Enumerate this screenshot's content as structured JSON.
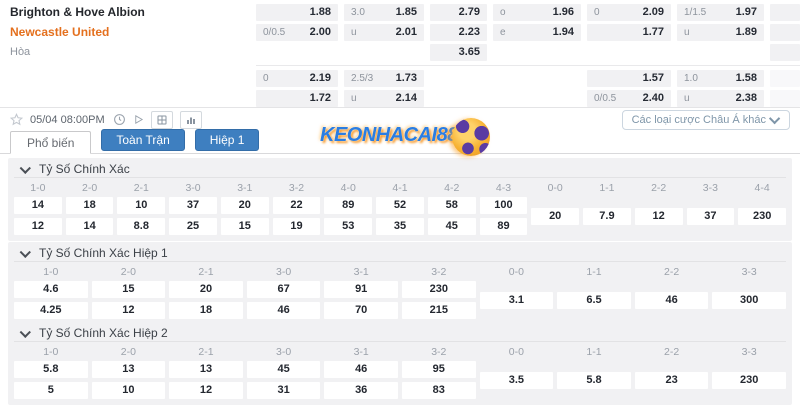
{
  "match": {
    "home": "Brighton & Hove Albion",
    "away": "Newcastle United",
    "draw_label": "Hòa"
  },
  "odds": {
    "rows": [
      {
        "stub": "gray",
        "cells": [
          {
            "l": "",
            "v": "1.88"
          },
          {
            "l": "3.0",
            "v": "1.85"
          },
          {
            "l": "",
            "v": "2.79"
          },
          {
            "l": "o",
            "v": "1.96"
          },
          {
            "l": "0",
            "v": "2.09"
          },
          {
            "l": "1/1.5",
            "v": "1.97"
          }
        ]
      },
      {
        "stub": "gray",
        "cells": [
          {
            "l": "0/0.5",
            "v": "2.00"
          },
          {
            "l": "u",
            "v": "2.01"
          },
          {
            "l": "",
            "v": "2.23"
          },
          {
            "l": "e",
            "v": "1.94"
          },
          {
            "l": "",
            "v": "1.77"
          },
          {
            "l": "u",
            "v": "1.89"
          }
        ]
      },
      {
        "stub": "gray",
        "cells": [
          null,
          null,
          {
            "l": "",
            "v": "3.65"
          },
          null,
          null,
          null
        ]
      },
      {
        "divider": true
      },
      {
        "stub": "faint",
        "cells": [
          {
            "l": "0",
            "v": "2.19"
          },
          {
            "l": "2.5/3",
            "v": "1.73"
          },
          null,
          null,
          {
            "l": "",
            "v": "1.57"
          },
          {
            "l": "1.0",
            "v": "1.58"
          }
        ]
      },
      {
        "stub": "faint",
        "cells": [
          {
            "l": "",
            "v": "1.72"
          },
          {
            "l": "u",
            "v": "2.14"
          },
          null,
          null,
          {
            "l": "0/0.5",
            "v": "2.40"
          },
          {
            "l": "u",
            "v": "2.38"
          }
        ]
      }
    ]
  },
  "toolbar": {
    "datetime": "05/04 08:00PM",
    "dropdown_label": "Các loại cược Châu Á khác",
    "icons": [
      "favorite-star",
      "clock",
      "play",
      "live-board",
      "stats-chart"
    ]
  },
  "tabs": [
    {
      "label": "Phổ biến",
      "active": true
    },
    {
      "label": "Toàn Trận",
      "active": false
    },
    {
      "label": "Hiệp 1",
      "active": false
    }
  ],
  "watermark": {
    "text": "KEONHACAI88"
  },
  "sections": [
    {
      "title": "Tỷ Số Chính Xác",
      "columns": [
        {
          "h": "1-0",
          "v": [
            "14",
            "12"
          ]
        },
        {
          "h": "2-0",
          "v": [
            "18",
            "14"
          ]
        },
        {
          "h": "2-1",
          "v": [
            "10",
            "8.8"
          ]
        },
        {
          "h": "3-0",
          "v": [
            "37",
            "25"
          ]
        },
        {
          "h": "3-1",
          "v": [
            "20",
            "15"
          ]
        },
        {
          "h": "3-2",
          "v": [
            "22",
            "19"
          ]
        },
        {
          "h": "4-0",
          "v": [
            "89",
            "53"
          ]
        },
        {
          "h": "4-1",
          "v": [
            "52",
            "35"
          ]
        },
        {
          "h": "4-2",
          "v": [
            "58",
            "45"
          ]
        },
        {
          "h": "4-3",
          "v": [
            "100",
            "89"
          ]
        },
        {
          "h": "0-0",
          "v": [
            "20"
          ]
        },
        {
          "h": "1-1",
          "v": [
            "7.9"
          ]
        },
        {
          "h": "2-2",
          "v": [
            "12"
          ]
        },
        {
          "h": "3-3",
          "v": [
            "37"
          ]
        },
        {
          "h": "4-4",
          "v": [
            "230"
          ]
        }
      ]
    },
    {
      "title": "Tỷ Số Chính Xác Hiệp 1",
      "columns": [
        {
          "h": "1-0",
          "v": [
            "4.6",
            "4.25"
          ]
        },
        {
          "h": "2-0",
          "v": [
            "15",
            "12"
          ]
        },
        {
          "h": "2-1",
          "v": [
            "20",
            "18"
          ]
        },
        {
          "h": "3-0",
          "v": [
            "67",
            "46"
          ]
        },
        {
          "h": "3-1",
          "v": [
            "91",
            "70"
          ]
        },
        {
          "h": "3-2",
          "v": [
            "230",
            "215"
          ]
        },
        {
          "h": "0-0",
          "v": [
            "3.1"
          ]
        },
        {
          "h": "1-1",
          "v": [
            "6.5"
          ]
        },
        {
          "h": "2-2",
          "v": [
            "46"
          ]
        },
        {
          "h": "3-3",
          "v": [
            "300"
          ]
        }
      ]
    },
    {
      "title": "Tỷ Số Chính Xác Hiệp 2",
      "columns": [
        {
          "h": "1-0",
          "v": [
            "5.8",
            "5"
          ]
        },
        {
          "h": "2-0",
          "v": [
            "13",
            "10"
          ]
        },
        {
          "h": "2-1",
          "v": [
            "13",
            "12"
          ]
        },
        {
          "h": "3-0",
          "v": [
            "45",
            "31"
          ]
        },
        {
          "h": "3-1",
          "v": [
            "46",
            "36"
          ]
        },
        {
          "h": "3-2",
          "v": [
            "95",
            "83"
          ]
        },
        {
          "h": "0-0",
          "v": [
            "3.5"
          ]
        },
        {
          "h": "1-1",
          "v": [
            "5.8"
          ]
        },
        {
          "h": "2-2",
          "v": [
            "23"
          ]
        },
        {
          "h": "3-3",
          "v": [
            "230"
          ]
        }
      ]
    }
  ],
  "colors": {
    "accent_blue": "#3e7fc0",
    "away_team_orange": "#e4701e",
    "odds_cell_bg": "#f1f1f3",
    "value_text": "#262b34",
    "watermark_blue": "#2a7de2",
    "watermark_orange": "#f7941d"
  }
}
